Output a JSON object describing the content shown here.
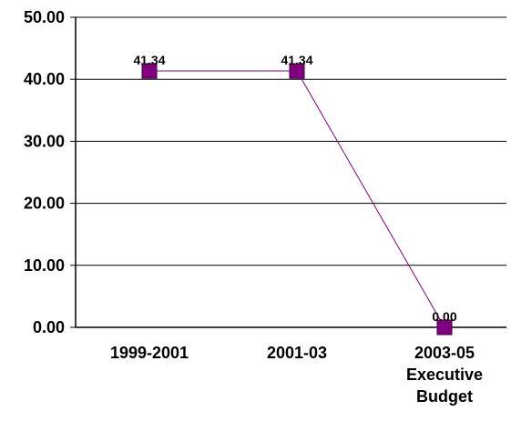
{
  "chart_data": {
    "type": "line",
    "title": "",
    "xlabel": "",
    "ylabel": "",
    "categories": [
      [
        "1999-2001"
      ],
      [
        "2001-03"
      ],
      [
        "2003-05",
        "Executive",
        "Budget"
      ]
    ],
    "series": [
      {
        "values": [
          41.34,
          41.34,
          0.0
        ],
        "data_labels": [
          "41.34",
          "41.34",
          "0.00"
        ]
      }
    ],
    "ylim": [
      0,
      50
    ],
    "yticks": [
      0,
      10,
      20,
      30,
      40,
      50
    ],
    "ytick_labels": [
      "0.00",
      "10.00",
      "20.00",
      "30.00",
      "40.00",
      "50.00"
    ],
    "grid": true,
    "legend": "none",
    "colors": {
      "line": "#800080",
      "marker_fill": "#800080",
      "marker_stroke": "#400040",
      "grid": "#000000",
      "axis": "#000000"
    }
  }
}
